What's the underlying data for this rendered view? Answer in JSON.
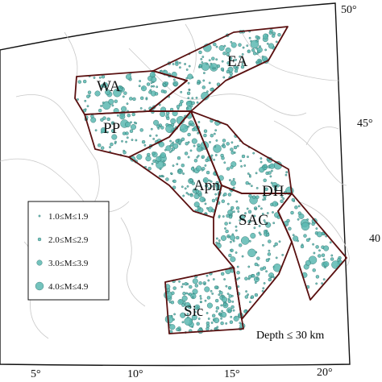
{
  "map": {
    "regions": [
      {
        "label": "WA"
      },
      {
        "label": "EA"
      },
      {
        "label": "PP"
      },
      {
        "label": "Apn"
      },
      {
        "label": "DH"
      },
      {
        "label": "SAC"
      },
      {
        "label": "Sic"
      }
    ],
    "legend": {
      "items": [
        "1.0≤M≤1.9",
        "2.0≤M≤2.9",
        "3.0≤M≤3.9",
        "4.0≤M≤4.9"
      ]
    },
    "note": "Depth ≤ 30 km",
    "lon_labels": [
      "5°",
      "10°",
      "15°",
      "20°"
    ],
    "lat_labels": [
      "50°",
      "45°",
      "40"
    ]
  }
}
